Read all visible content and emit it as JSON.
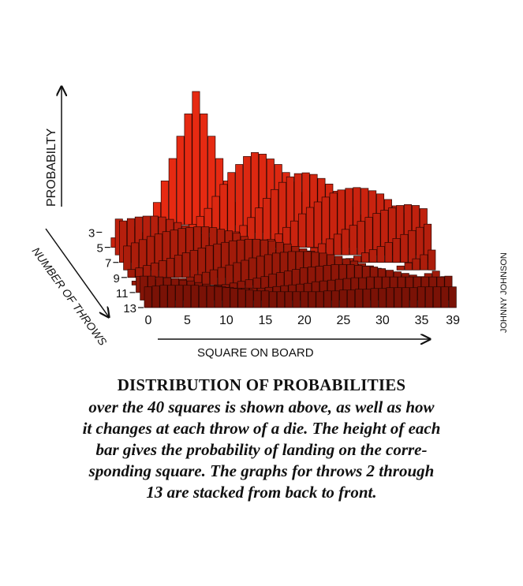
{
  "chart_data": {
    "type": "bar",
    "title": "DISTRIBUTION OF PROBABILITIES",
    "xlabel": "SQUARE ON BOARD",
    "ylabel": "PROBABILTY",
    "zlabel": "NUMBER OF THROWS",
    "x_ticks": [
      "0",
      "5",
      "10",
      "15",
      "20",
      "25",
      "30",
      "35",
      "39"
    ],
    "throw_ticks": [
      "3",
      "5",
      "7",
      "9",
      "11",
      "13"
    ],
    "squares": [
      0,
      1,
      2,
      3,
      4,
      5,
      6,
      7,
      8,
      9,
      10,
      11,
      12,
      13,
      14,
      15,
      16,
      17,
      18,
      19,
      20,
      21,
      22,
      23,
      24,
      25,
      26,
      27,
      28,
      29,
      30,
      31,
      32,
      33,
      34,
      35,
      36,
      37,
      38,
      39
    ],
    "ylim": [
      0,
      0.17
    ],
    "series": [
      {
        "throw": 2,
        "values": [
          0.0,
          0.0,
          0.0,
          0.0,
          0.0,
          0.0,
          0.0,
          0.028,
          0.055,
          0.083,
          0.111,
          0.139,
          0.167,
          0.139,
          0.111,
          0.083,
          0.055,
          0.028,
          0.0,
          0.0,
          0.0,
          0.0,
          0.0,
          0.0,
          0.0,
          0.0,
          0.0,
          0.0,
          0.0,
          0.0,
          0.0,
          0.0,
          0.0,
          0.0,
          0.0,
          0.0,
          0.0,
          0.0,
          0.0,
          0.0
        ]
      },
      {
        "throw": 3,
        "values": [
          0.0,
          0.0,
          0.0,
          0.0,
          0.0,
          0.0,
          0.0,
          0.0,
          0.0,
          0.0,
          0.005,
          0.01,
          0.02,
          0.03,
          0.045,
          0.06,
          0.075,
          0.085,
          0.095,
          0.1,
          0.098,
          0.092,
          0.085,
          0.075,
          0.063,
          0.05,
          0.038,
          0.027,
          0.018,
          0.01,
          0.005,
          0.0,
          0.0,
          0.0,
          0.0,
          0.0,
          0.0,
          0.0,
          0.0,
          0.0
        ]
      },
      {
        "throw": 4,
        "values": [
          0.0,
          0.0,
          0.0,
          0.0,
          0.0,
          0.0,
          0.0,
          0.0,
          0.0,
          0.0,
          0.0,
          0.0,
          0.0,
          0.0,
          0.0,
          0.005,
          0.01,
          0.018,
          0.028,
          0.04,
          0.052,
          0.063,
          0.072,
          0.079,
          0.083,
          0.084,
          0.082,
          0.077,
          0.07,
          0.061,
          0.051,
          0.041,
          0.031,
          0.022,
          0.015,
          0.009,
          0.005,
          0.0,
          0.0,
          0.0
        ]
      },
      {
        "throw": 5,
        "values": [
          0.012,
          0.008,
          0.005,
          0.0,
          0.0,
          0.0,
          0.0,
          0.0,
          0.0,
          0.0,
          0.0,
          0.0,
          0.0,
          0.0,
          0.0,
          0.0,
          0.0,
          0.0,
          0.0,
          0.005,
          0.01,
          0.017,
          0.025,
          0.033,
          0.042,
          0.05,
          0.057,
          0.063,
          0.068,
          0.072,
          0.074,
          0.075,
          0.074,
          0.071,
          0.067,
          0.06,
          0.052,
          0.043,
          0.033,
          0.022
        ]
      },
      {
        "throw": 6,
        "values": [
          0.045,
          0.04,
          0.035,
          0.028,
          0.022,
          0.016,
          0.011,
          0.007,
          0.004,
          0.002,
          0.0,
          0.0,
          0.0,
          0.0,
          0.0,
          0.0,
          0.0,
          0.0,
          0.0,
          0.0,
          0.0,
          0.0,
          0.0,
          0.0,
          0.005,
          0.009,
          0.014,
          0.02,
          0.026,
          0.032,
          0.037,
          0.042,
          0.047,
          0.052,
          0.056,
          0.059,
          0.062,
          0.063,
          0.062,
          0.058
        ]
      },
      {
        "throw": 7,
        "values": [
          0.052,
          0.055,
          0.057,
          0.058,
          0.058,
          0.057,
          0.054,
          0.05,
          0.046,
          0.041,
          0.036,
          0.031,
          0.026,
          0.021,
          0.016,
          0.012,
          0.008,
          0.005,
          0.003,
          0.0,
          0.0,
          0.0,
          0.0,
          0.0,
          0.0,
          0.0,
          0.0,
          0.0,
          0.0,
          0.005,
          0.008,
          0.012,
          0.016,
          0.02,
          0.025,
          0.03,
          0.035,
          0.04,
          0.044,
          0.048
        ]
      },
      {
        "throw": 8,
        "values": [
          0.03,
          0.034,
          0.038,
          0.042,
          0.045,
          0.048,
          0.05,
          0.052,
          0.053,
          0.054,
          0.054,
          0.053,
          0.051,
          0.049,
          0.046,
          0.042,
          0.038,
          0.034,
          0.029,
          0.025,
          0.02,
          0.016,
          0.012,
          0.009,
          0.006,
          0.004,
          0.002,
          0.0,
          0.0,
          0.0,
          0.0,
          0.0,
          0.0,
          0.0,
          0.0,
          0.005,
          0.009,
          0.014,
          0.019,
          0.025
        ]
      },
      {
        "throw": 9,
        "values": [
          0.01,
          0.012,
          0.015,
          0.018,
          0.021,
          0.024,
          0.028,
          0.031,
          0.034,
          0.037,
          0.04,
          0.042,
          0.044,
          0.046,
          0.047,
          0.048,
          0.048,
          0.047,
          0.046,
          0.044,
          0.042,
          0.039,
          0.036,
          0.033,
          0.029,
          0.026,
          0.022,
          0.018,
          0.015,
          0.012,
          0.009,
          0.007,
          0.005,
          0.003,
          0.002,
          0.0,
          0.0,
          0.0,
          0.005,
          0.008
        ]
      },
      {
        "throw": 10,
        "values": [
          0.005,
          0.004,
          0.003,
          0.003,
          0.004,
          0.006,
          0.008,
          0.01,
          0.013,
          0.016,
          0.019,
          0.022,
          0.025,
          0.028,
          0.031,
          0.034,
          0.036,
          0.038,
          0.04,
          0.041,
          0.042,
          0.042,
          0.042,
          0.041,
          0.04,
          0.038,
          0.036,
          0.033,
          0.03,
          0.027,
          0.024,
          0.021,
          0.018,
          0.015,
          0.012,
          0.01,
          0.008,
          0.007,
          0.006,
          0.005
        ]
      },
      {
        "throw": 11,
        "values": [
          0.02,
          0.018,
          0.016,
          0.014,
          0.012,
          0.01,
          0.009,
          0.008,
          0.008,
          0.008,
          0.009,
          0.01,
          0.012,
          0.014,
          0.016,
          0.018,
          0.02,
          0.023,
          0.025,
          0.027,
          0.029,
          0.031,
          0.032,
          0.033,
          0.034,
          0.035,
          0.035,
          0.035,
          0.034,
          0.033,
          0.032,
          0.03,
          0.028,
          0.026,
          0.024,
          0.022,
          0.02,
          0.019,
          0.019,
          0.02
        ]
      },
      {
        "throw": 12,
        "values": [
          0.03,
          0.03,
          0.029,
          0.028,
          0.027,
          0.025,
          0.024,
          0.022,
          0.02,
          0.018,
          0.017,
          0.016,
          0.015,
          0.015,
          0.015,
          0.015,
          0.016,
          0.017,
          0.018,
          0.019,
          0.02,
          0.021,
          0.023,
          0.024,
          0.025,
          0.026,
          0.027,
          0.028,
          0.028,
          0.029,
          0.029,
          0.029,
          0.029,
          0.029,
          0.029,
          0.029,
          0.029,
          0.029,
          0.029,
          0.03
        ]
      },
      {
        "throw": 13,
        "values": [
          0.026,
          0.027,
          0.028,
          0.028,
          0.028,
          0.028,
          0.028,
          0.027,
          0.027,
          0.026,
          0.025,
          0.024,
          0.023,
          0.022,
          0.021,
          0.021,
          0.02,
          0.02,
          0.02,
          0.02,
          0.02,
          0.02,
          0.02,
          0.021,
          0.021,
          0.022,
          0.022,
          0.023,
          0.023,
          0.024,
          0.024,
          0.025,
          0.025,
          0.025,
          0.025,
          0.026,
          0.026,
          0.026,
          0.026,
          0.026
        ]
      }
    ],
    "grid": false,
    "legend": "none"
  },
  "credit": "JOHNNY JOHNSON",
  "caption": {
    "title": "DISTRIBUTION OF PROBABILITIES",
    "lines": [
      "over the 40 squares is shown above, as well as how",
      "it changes at each throw of a die. The height of each",
      "bar gives the probability of landing on the corre-",
      "sponding square. The graphs for throws 2 through",
      "13 are stacked from back to front."
    ]
  },
  "colors": {
    "back_series": "#e62a12",
    "front_series": "#7a1206",
    "outline": "#2a0500",
    "axis": "#111111"
  }
}
